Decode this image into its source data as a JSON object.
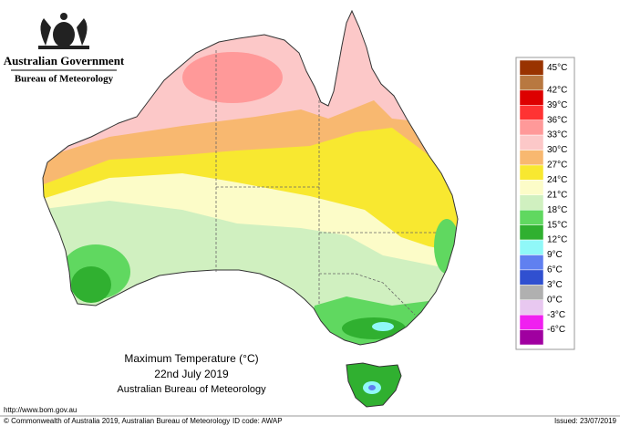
{
  "header": {
    "government": "Australian Government",
    "agency": "Bureau of Meteorology"
  },
  "legend": {
    "colors": [
      "#993300",
      "#b87840",
      "#dd0000",
      "#ff3333",
      "#ff9999",
      "#fcc8c8",
      "#f8b870",
      "#f8e830",
      "#fcfcc8",
      "#d0f0c0",
      "#60d860",
      "#30b030",
      "#90f8f8",
      "#6080f0",
      "#3050d0",
      "#b0b0b0",
      "#e8c8f0",
      "#f020f0",
      "#a000a0"
    ],
    "labels": [
      "45°C",
      "42°C",
      "39°C",
      "36°C",
      "33°C",
      "30°C",
      "27°C",
      "24°C",
      "21°C",
      "18°C",
      "15°C",
      "12°C",
      "9°C",
      "6°C",
      "3°C",
      "0°C",
      "-3°C",
      "-6°C"
    ]
  },
  "caption": {
    "title": "Maximum Temperature (°C)",
    "date": "22nd July 2019",
    "source": "Australian Bureau of Meteorology"
  },
  "footer": {
    "url": "http://www.bom.gov.au",
    "copyright": "© Commonwealth of Australia 2019, Australian Bureau of Meteorology",
    "id_code": "ID code: AWAP",
    "issued": "Issued: 23/07/2019"
  }
}
